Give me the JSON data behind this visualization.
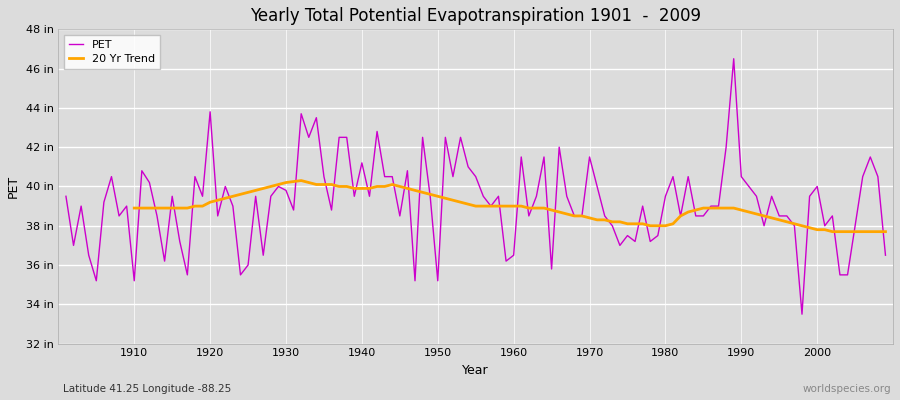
{
  "title": "Yearly Total Potential Evapotranspiration 1901  -  2009",
  "xlabel": "Year",
  "ylabel": "PET",
  "bottom_left_label": "Latitude 41.25 Longitude -88.25",
  "bottom_right_label": "worldspecies.org",
  "pet_color": "#CC00CC",
  "trend_color": "#FFA500",
  "bg_color": "#DCDCDC",
  "plot_bg_color": "#DCDCDC",
  "grid_color": "#FFFFFF",
  "ylim": [
    32,
    48
  ],
  "ytick_labels": [
    "32 in",
    "34 in",
    "36 in",
    "38 in",
    "40 in",
    "42 in",
    "44 in",
    "46 in",
    "48 in"
  ],
  "ytick_values": [
    32,
    34,
    36,
    38,
    40,
    42,
    44,
    46,
    48
  ],
  "years": [
    1901,
    1902,
    1903,
    1904,
    1905,
    1906,
    1907,
    1908,
    1909,
    1910,
    1911,
    1912,
    1913,
    1914,
    1915,
    1916,
    1917,
    1918,
    1919,
    1920,
    1921,
    1922,
    1923,
    1924,
    1925,
    1926,
    1927,
    1928,
    1929,
    1930,
    1931,
    1932,
    1933,
    1934,
    1935,
    1936,
    1937,
    1938,
    1939,
    1940,
    1941,
    1942,
    1943,
    1944,
    1945,
    1946,
    1947,
    1948,
    1949,
    1950,
    1951,
    1952,
    1953,
    1954,
    1955,
    1956,
    1957,
    1958,
    1959,
    1960,
    1961,
    1962,
    1963,
    1964,
    1965,
    1966,
    1967,
    1968,
    1969,
    1970,
    1971,
    1972,
    1973,
    1974,
    1975,
    1976,
    1977,
    1978,
    1979,
    1980,
    1981,
    1982,
    1983,
    1984,
    1985,
    1986,
    1987,
    1988,
    1989,
    1990,
    1991,
    1992,
    1993,
    1994,
    1995,
    1996,
    1997,
    1998,
    1999,
    2000,
    2001,
    2002,
    2003,
    2004,
    2005,
    2006,
    2007,
    2008,
    2009
  ],
  "pet_values": [
    39.5,
    37.0,
    39.0,
    36.5,
    35.2,
    39.2,
    40.5,
    38.5,
    39.0,
    35.2,
    40.8,
    40.2,
    38.5,
    36.2,
    39.5,
    37.2,
    35.5,
    40.5,
    39.5,
    43.8,
    38.5,
    40.0,
    39.0,
    35.5,
    36.0,
    39.5,
    36.5,
    39.5,
    40.0,
    39.8,
    38.8,
    43.7,
    42.5,
    43.5,
    40.5,
    38.8,
    42.5,
    42.5,
    39.5,
    41.2,
    39.5,
    42.8,
    40.5,
    40.5,
    38.5,
    40.8,
    35.2,
    42.5,
    39.5,
    35.2,
    42.5,
    40.5,
    42.5,
    41.0,
    40.5,
    39.5,
    39.0,
    39.5,
    36.2,
    36.5,
    41.5,
    38.5,
    39.5,
    41.5,
    35.8,
    42.0,
    39.5,
    38.5,
    38.5,
    41.5,
    40.0,
    38.5,
    38.0,
    37.0,
    37.5,
    37.2,
    39.0,
    37.2,
    37.5,
    39.5,
    40.5,
    38.5,
    40.5,
    38.5,
    38.5,
    39.0,
    39.0,
    42.0,
    46.5,
    40.5,
    40.0,
    39.5,
    38.0,
    39.5,
    38.5,
    38.5,
    38.0,
    33.5,
    39.5,
    40.0,
    38.0,
    38.5,
    35.5,
    35.5,
    38.0,
    40.5,
    41.5,
    40.5,
    36.5
  ],
  "trend_years": [
    1910,
    1911,
    1912,
    1913,
    1914,
    1915,
    1916,
    1917,
    1918,
    1919,
    1920,
    1921,
    1922,
    1923,
    1924,
    1925,
    1926,
    1927,
    1928,
    1929,
    1930,
    1931,
    1932,
    1933,
    1934,
    1935,
    1936,
    1937,
    1938,
    1939,
    1940,
    1941,
    1942,
    1943,
    1944,
    1945,
    1946,
    1947,
    1948,
    1949,
    1950,
    1951,
    1952,
    1953,
    1954,
    1955,
    1956,
    1957,
    1958,
    1959,
    1960,
    1961,
    1962,
    1963,
    1964,
    1965,
    1966,
    1967,
    1968,
    1969,
    1970,
    1971,
    1972,
    1973,
    1974,
    1975,
    1976,
    1977,
    1978,
    1979,
    1980,
    1981,
    1982,
    1983,
    1984,
    1985,
    1986,
    1987,
    1988,
    1989,
    1990,
    1991,
    1992,
    1993,
    1994,
    1995,
    1996,
    1997,
    1998,
    1999,
    2000,
    2001,
    2002,
    2003,
    2004,
    2005,
    2006,
    2007,
    2008,
    2009
  ],
  "trend_values": [
    38.9,
    38.9,
    38.9,
    38.9,
    38.9,
    38.9,
    38.9,
    38.9,
    39.0,
    39.0,
    39.2,
    39.3,
    39.4,
    39.5,
    39.6,
    39.7,
    39.8,
    39.9,
    40.0,
    40.1,
    40.2,
    40.25,
    40.3,
    40.2,
    40.1,
    40.1,
    40.1,
    40.0,
    40.0,
    39.9,
    39.9,
    39.9,
    40.0,
    40.0,
    40.1,
    40.0,
    39.9,
    39.8,
    39.7,
    39.6,
    39.5,
    39.4,
    39.3,
    39.2,
    39.1,
    39.0,
    39.0,
    39.0,
    39.0,
    39.0,
    39.0,
    39.0,
    38.9,
    38.9,
    38.9,
    38.8,
    38.7,
    38.6,
    38.5,
    38.5,
    38.4,
    38.3,
    38.3,
    38.2,
    38.2,
    38.1,
    38.1,
    38.1,
    38.0,
    38.0,
    38.0,
    38.1,
    38.5,
    38.7,
    38.8,
    38.9,
    38.9,
    38.9,
    38.9,
    38.9,
    38.8,
    38.7,
    38.6,
    38.5,
    38.4,
    38.3,
    38.2,
    38.1,
    38.0,
    37.9,
    37.8,
    37.8,
    37.7,
    37.7,
    37.7,
    37.7,
    37.7,
    37.7,
    37.7,
    37.7
  ]
}
